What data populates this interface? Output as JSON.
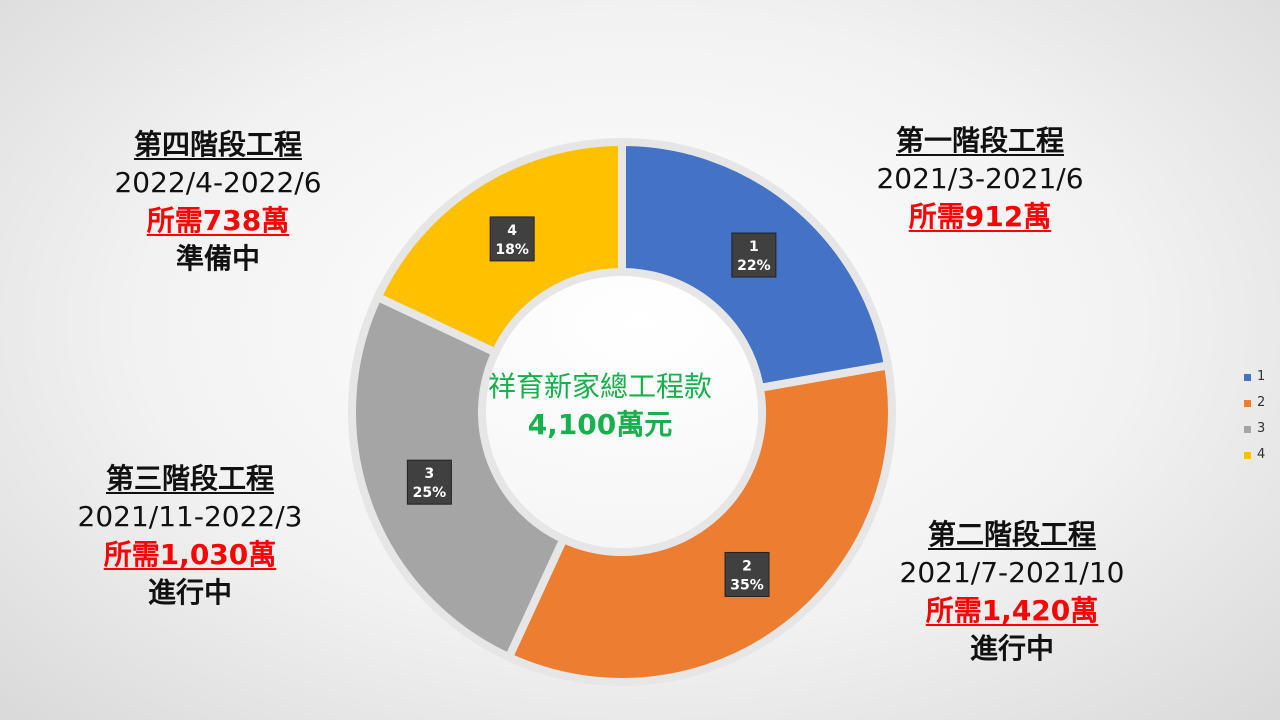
{
  "chart_data": {
    "type": "pie",
    "donut": true,
    "title": "",
    "categories": [
      "1",
      "2",
      "3",
      "4"
    ],
    "values": [
      912,
      1420,
      1030,
      738
    ],
    "percent_labels": [
      "22%",
      "35%",
      "25%",
      "18%"
    ],
    "colors": [
      "#4472c4",
      "#ed7d31",
      "#a5a5a5",
      "#ffc000"
    ],
    "legend_position": "right"
  },
  "center": {
    "line1": "祥育新家總工程款",
    "line2": "4,100萬元"
  },
  "phases": [
    {
      "title": "第一階段工程",
      "dates": "2021/3-2021/6",
      "cost": "所需912萬",
      "status": ""
    },
    {
      "title": "第二階段工程",
      "dates": "2021/7-2021/10",
      "cost": "所需1,420萬",
      "status": "進行中"
    },
    {
      "title": "第三階段工程",
      "dates": "2021/11-2022/3",
      "cost": "所需1,030萬",
      "status": "進行中"
    },
    {
      "title": "第四階段工程",
      "dates": "2022/4-2022/6",
      "cost": "所需738萬",
      "status": "準備中"
    }
  ]
}
